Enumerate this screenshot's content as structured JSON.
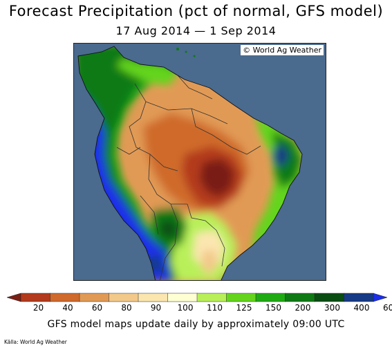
{
  "title": "Forecast Precipitation (pct of normal, GFS model)",
  "subtitle": "17 Aug 2014 — 1 Sep 2014",
  "credit": "© World Ag Weather",
  "legend": {
    "ticks": [
      "20",
      "40",
      "60",
      "80",
      "90",
      "100",
      "110",
      "125",
      "150",
      "200",
      "300",
      "400",
      "600"
    ],
    "colors": [
      "#7a1f14",
      "#b33a1c",
      "#cf6a2c",
      "#e19a55",
      "#f2c98a",
      "#fce6b0",
      "#ffffd4",
      "#b9f05a",
      "#64d51c",
      "#1faa14",
      "#0f7a14",
      "#0a4d12",
      "#173a86",
      "#1c2eea"
    ]
  },
  "note": "GFS model maps update daily by approximately 09:00 UTC",
  "source": "Källa: World Ag Weather",
  "map": {
    "ocean_color": "#4a6a8e",
    "border_color": "#333333"
  }
}
